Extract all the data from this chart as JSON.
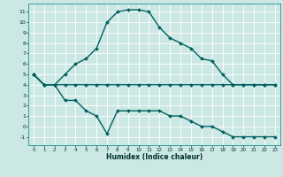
{
  "xlabel": "Humidex (Indice chaleur)",
  "bg_color": "#cce8e4",
  "grid_color": "#ffffff",
  "line_color": "#006060",
  "line_width": 1.0,
  "marker": "D",
  "marker_size": 2.0,
  "xlim": [
    -0.5,
    23.5
  ],
  "ylim": [
    -1.8,
    11.8
  ],
  "xticks": [
    0,
    1,
    2,
    3,
    4,
    5,
    6,
    7,
    8,
    9,
    10,
    11,
    12,
    13,
    14,
    15,
    16,
    17,
    18,
    19,
    20,
    21,
    22,
    23
  ],
  "yticks": [
    -1,
    0,
    1,
    2,
    3,
    4,
    5,
    6,
    7,
    8,
    9,
    10,
    11
  ],
  "s1y": [
    5.0,
    4.0,
    4.0,
    4.0,
    4.0,
    4.0,
    4.0,
    4.0,
    4.0,
    4.0,
    4.0,
    4.0,
    4.0,
    4.0,
    4.0,
    4.0,
    4.0,
    4.0,
    4.0,
    4.0,
    4.0,
    4.0,
    4.0,
    4.0
  ],
  "s2y": [
    5.0,
    4.0,
    4.0,
    5.0,
    6.0,
    6.5,
    7.5,
    10.0,
    11.0,
    11.2,
    11.2,
    11.0,
    9.5,
    8.5,
    8.0,
    7.5,
    6.5,
    6.3,
    5.0,
    4.0,
    4.0,
    4.0,
    4.0,
    4.0
  ],
  "s3y": [
    5.0,
    4.0,
    4.0,
    2.5,
    2.5,
    1.5,
    1.0,
    -0.7,
    1.5,
    1.5,
    1.5,
    1.5,
    1.5,
    1.0,
    1.0,
    0.5,
    0.0,
    0.0,
    -0.5,
    -1.0,
    -1.0,
    -1.0,
    -1.0,
    -1.0
  ]
}
